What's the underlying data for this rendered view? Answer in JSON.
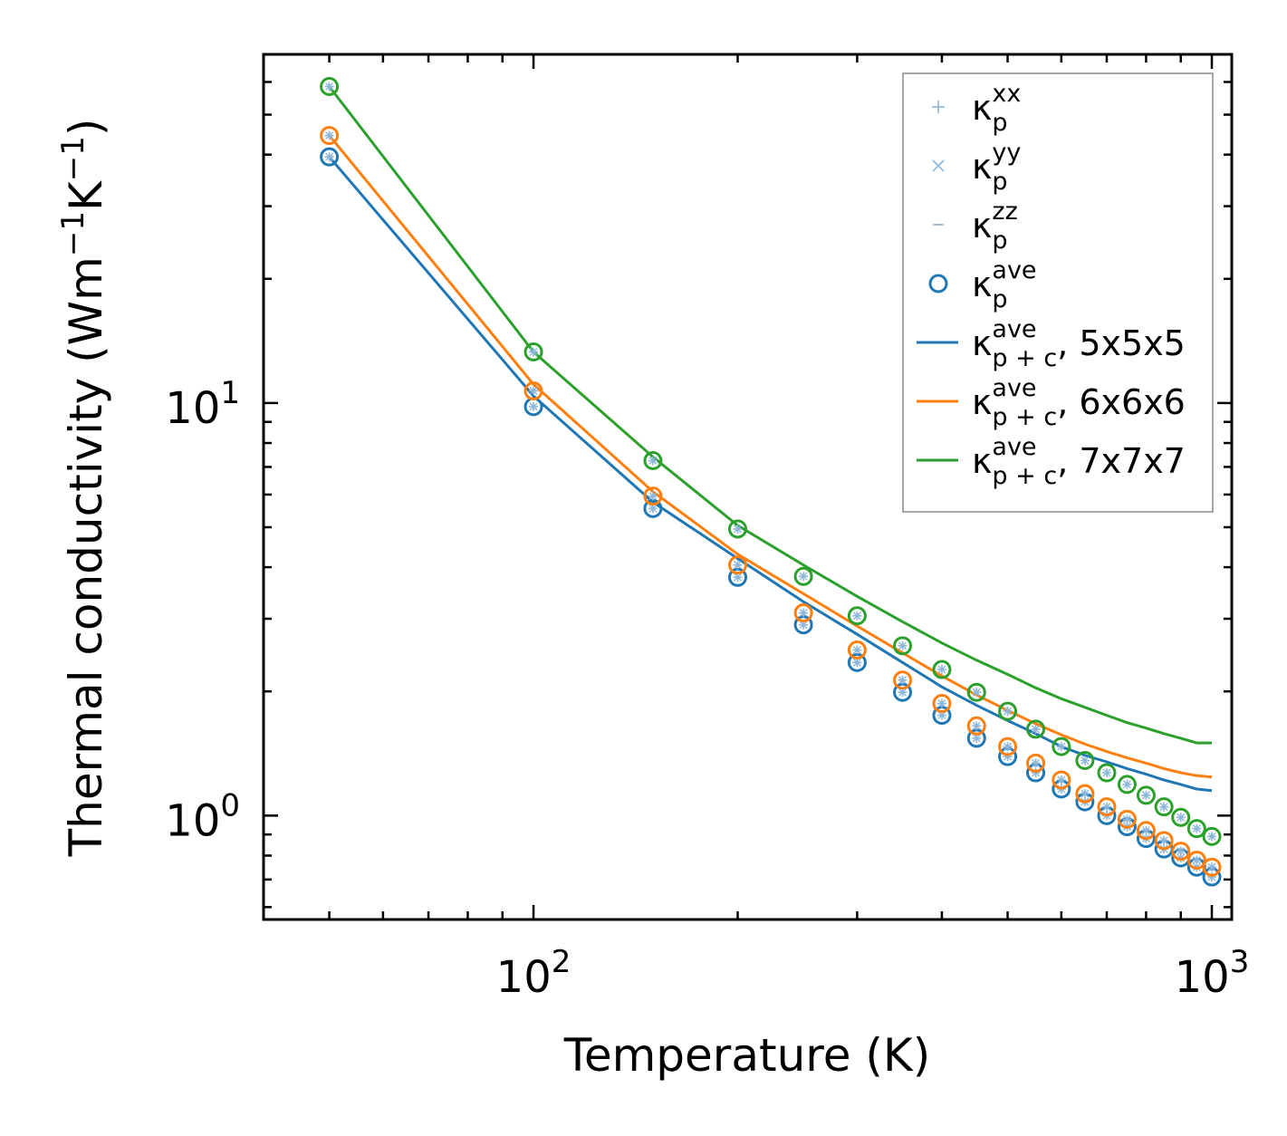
{
  "chart_data": {
    "type": "scatter",
    "title": "",
    "xlabel": "Temperature (K)",
    "ylabel_main": "Thermal conductivity (Wm",
    "ylabel_exp1": "−1",
    "ylabel_mid": "K",
    "ylabel_exp2": "−1",
    "ylabel_end": ")",
    "xscale": "log",
    "yscale": "log",
    "xlim": [
      40,
      1070
    ],
    "ylim": [
      0.56,
      70
    ],
    "x_ticks": [
      {
        "value": 100,
        "base": "10",
        "exp": "2"
      },
      {
        "value": 1000,
        "base": "10",
        "exp": "3"
      }
    ],
    "y_ticks": [
      {
        "value": 1,
        "base": "10",
        "exp": "0"
      },
      {
        "value": 10,
        "base": "10",
        "exp": "1"
      }
    ],
    "x": [
      50,
      100,
      150,
      200,
      250,
      300,
      350,
      400,
      450,
      500,
      550,
      600,
      650,
      700,
      750,
      800,
      850,
      900,
      950,
      1000
    ],
    "series": [
      {
        "name": "5x5x5",
        "color": "#1f77b4",
        "points": [
          39.5,
          9.8,
          5.55,
          3.78,
          2.9,
          2.35,
          1.99,
          1.75,
          1.54,
          1.39,
          1.27,
          1.16,
          1.08,
          1.0,
          0.94,
          0.88,
          0.83,
          0.79,
          0.75,
          0.71
        ],
        "line": [
          39.5,
          10.4,
          5.75,
          4.2,
          3.3,
          2.75,
          2.35,
          2.05,
          1.85,
          1.7,
          1.58,
          1.47,
          1.4,
          1.35,
          1.3,
          1.26,
          1.22,
          1.19,
          1.16,
          1.15
        ]
      },
      {
        "name": "6x6x6",
        "color": "#ff7f0e",
        "points": [
          44.5,
          10.7,
          5.95,
          4.05,
          3.1,
          2.52,
          2.13,
          1.87,
          1.65,
          1.47,
          1.34,
          1.22,
          1.13,
          1.05,
          0.98,
          0.92,
          0.87,
          0.82,
          0.78,
          0.75
        ],
        "line": [
          44.5,
          11.1,
          6.1,
          4.3,
          3.45,
          2.88,
          2.48,
          2.18,
          1.96,
          1.8,
          1.67,
          1.57,
          1.49,
          1.43,
          1.38,
          1.34,
          1.3,
          1.27,
          1.25,
          1.24
        ]
      },
      {
        "name": "7x7x7",
        "color": "#2ca02c",
        "points": [
          58.5,
          13.3,
          7.25,
          4.95,
          3.8,
          3.05,
          2.58,
          2.26,
          1.99,
          1.79,
          1.62,
          1.47,
          1.36,
          1.27,
          1.19,
          1.12,
          1.05,
          0.99,
          0.93,
          0.89
        ],
        "line": [
          58.5,
          13.3,
          7.4,
          5.05,
          4.05,
          3.4,
          2.95,
          2.62,
          2.38,
          2.2,
          2.04,
          1.92,
          1.83,
          1.75,
          1.68,
          1.63,
          1.58,
          1.54,
          1.5,
          1.5
        ]
      }
    ],
    "legend": {
      "placement": "top-right",
      "entries": [
        {
          "base": "κ",
          "sup": "xx",
          "sub": "p",
          "suffix": "",
          "marker": "plus",
          "color": "#8cb6da"
        },
        {
          "base": "κ",
          "sup": "yy",
          "sub": "p",
          "suffix": "",
          "marker": "cross",
          "color": "#8cb6da"
        },
        {
          "base": "κ",
          "sup": "zz",
          "sub": "p",
          "suffix": "",
          "marker": "dash",
          "color": "#8cb6da"
        },
        {
          "base": "κ",
          "sup": "ave",
          "sub": "p",
          "suffix": "",
          "marker": "circle",
          "color": "#1f77b4"
        },
        {
          "base": "κ",
          "sup": "ave",
          "sub": "p + c",
          "suffix": ", 5x5x5",
          "marker": "line",
          "color": "#1f77b4"
        },
        {
          "base": "κ",
          "sup": "ave",
          "sub": "p + c",
          "suffix": ", 6x6x6",
          "marker": "line",
          "color": "#ff7f0e"
        },
        {
          "base": "κ",
          "sup": "ave",
          "sub": "p + c",
          "suffix": ", 7x7x7",
          "marker": "line",
          "color": "#2ca02c"
        }
      ]
    },
    "components_color": "#8cb6da"
  }
}
